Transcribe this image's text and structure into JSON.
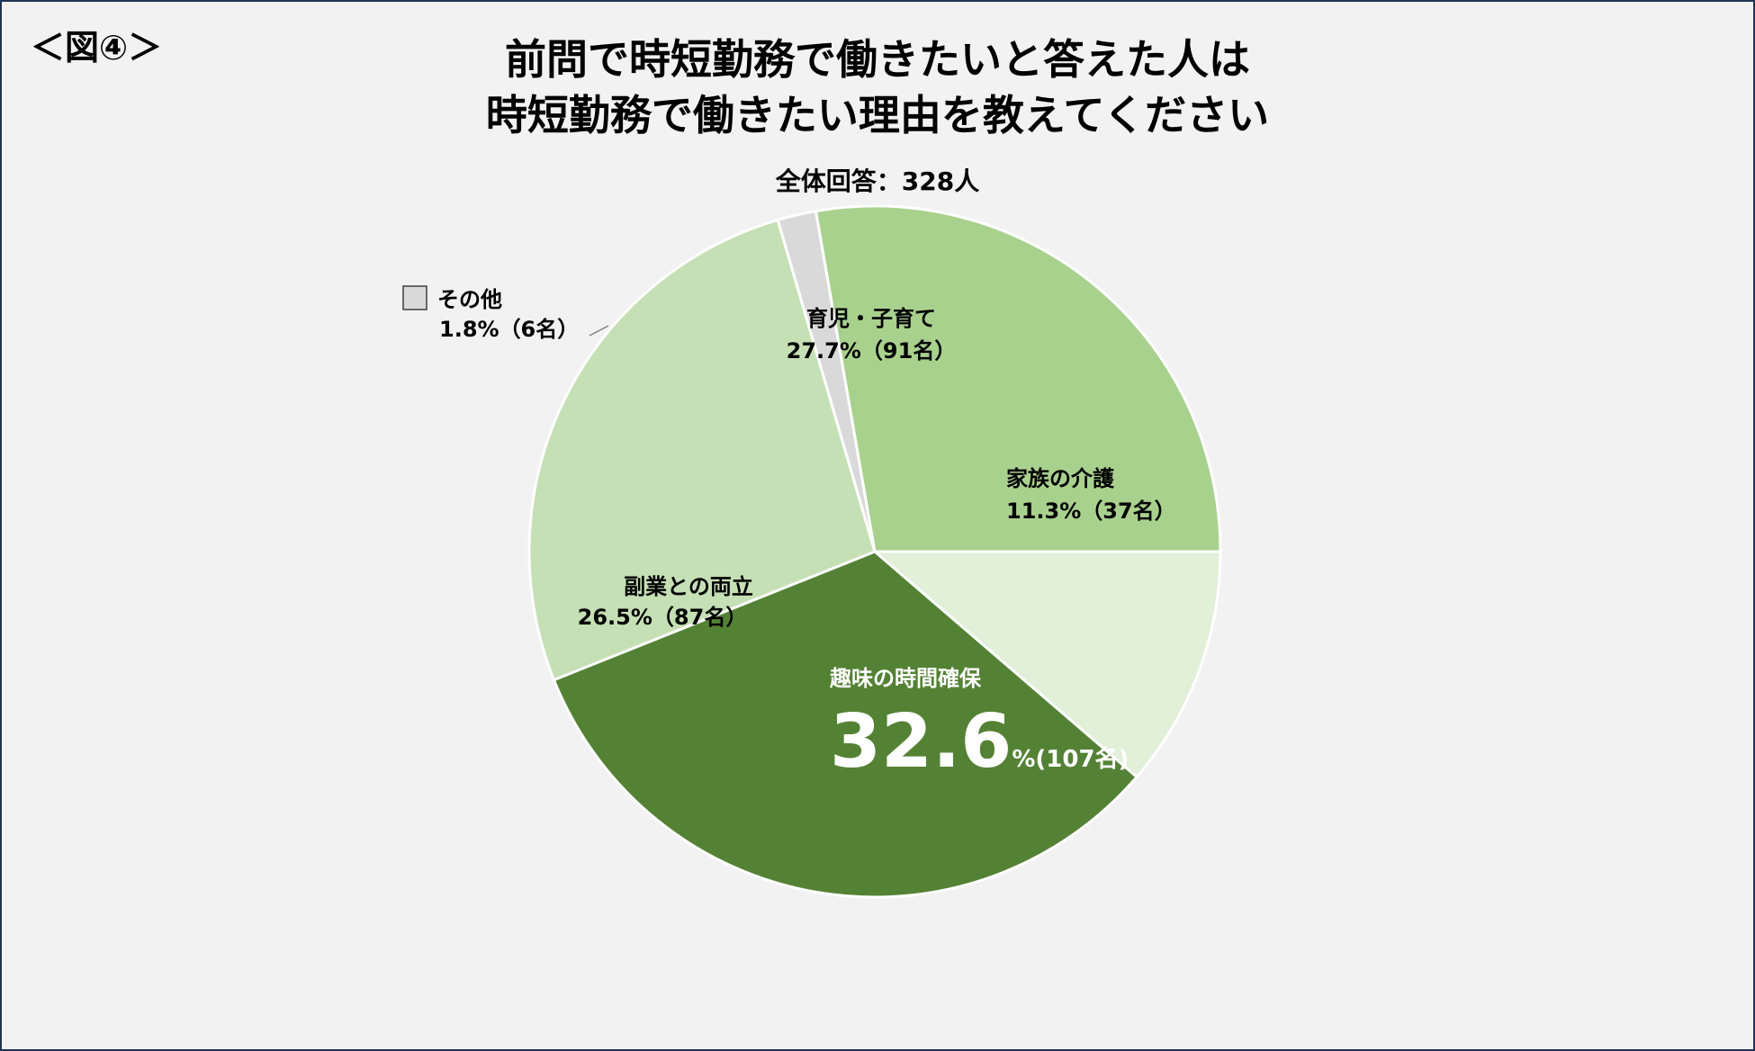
{
  "figure_label": "＜図④＞",
  "title_line1": "前問で時短勤務で働きたいと答えた人は",
  "title_line2": "時短勤務で働きたい理由を教えてください",
  "subtitle": "全体回答：328人",
  "chart_data": {
    "type": "pie",
    "title": "前問で時短勤務で働きたいと答えた人は 時短勤務で働きたい理由を教えてください",
    "total_label": "全体回答：328人",
    "slices": [
      {
        "name": "家族の介護",
        "percent": 11.3,
        "count": 37,
        "value_label": "11.3%（37名）",
        "color": "#e2efd9"
      },
      {
        "name": "趣味の時間確保",
        "percent": 32.6,
        "count": 107,
        "big_value": "32.6",
        "suffix": "%(107名)",
        "color": "#548235"
      },
      {
        "name": "副業との両立",
        "percent": 26.5,
        "count": 87,
        "value_label": "26.5%（87名）",
        "color": "#c5e0b4"
      },
      {
        "name": "その他",
        "percent": 1.8,
        "count": 6,
        "value_label": "1.8%（6名）",
        "color": "#d9d9d9"
      },
      {
        "name": "育児・子育て",
        "percent": 27.7,
        "count": 91,
        "value_label": "27.7%（91名）",
        "color": "#a9d18e"
      }
    ]
  }
}
